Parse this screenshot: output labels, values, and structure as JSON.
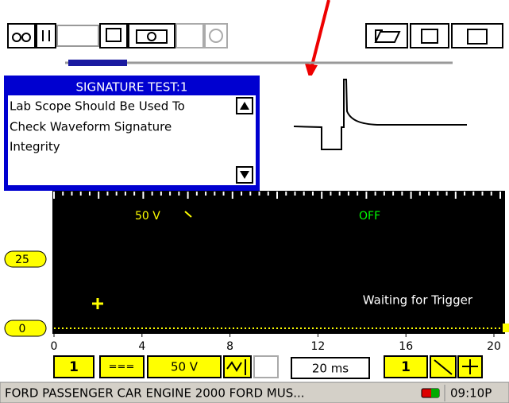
{
  "test_panel": {
    "title": "SIGNATURE TEST:1",
    "lines": [
      "Lab Scope Should Be Used To",
      "Check Waveform Signature",
      "Integrity"
    ]
  },
  "scope": {
    "voltage_label": "50 V",
    "trigger_state": "OFF",
    "status": "Waiting for Trigger",
    "y_markers": [
      "25",
      "0"
    ],
    "x_labels": [
      "0",
      "4",
      "8",
      "12",
      "16",
      "20"
    ]
  },
  "controls": {
    "channel": "1",
    "coupling": "===",
    "volts_per_div": "50 V",
    "time_per_div": "20 ms",
    "trigger_channel": "1"
  },
  "status_bar": {
    "vehicle": "FORD PASSENGER CAR ENGINE 2000 FORD MUS...",
    "time": "09:10P"
  }
}
